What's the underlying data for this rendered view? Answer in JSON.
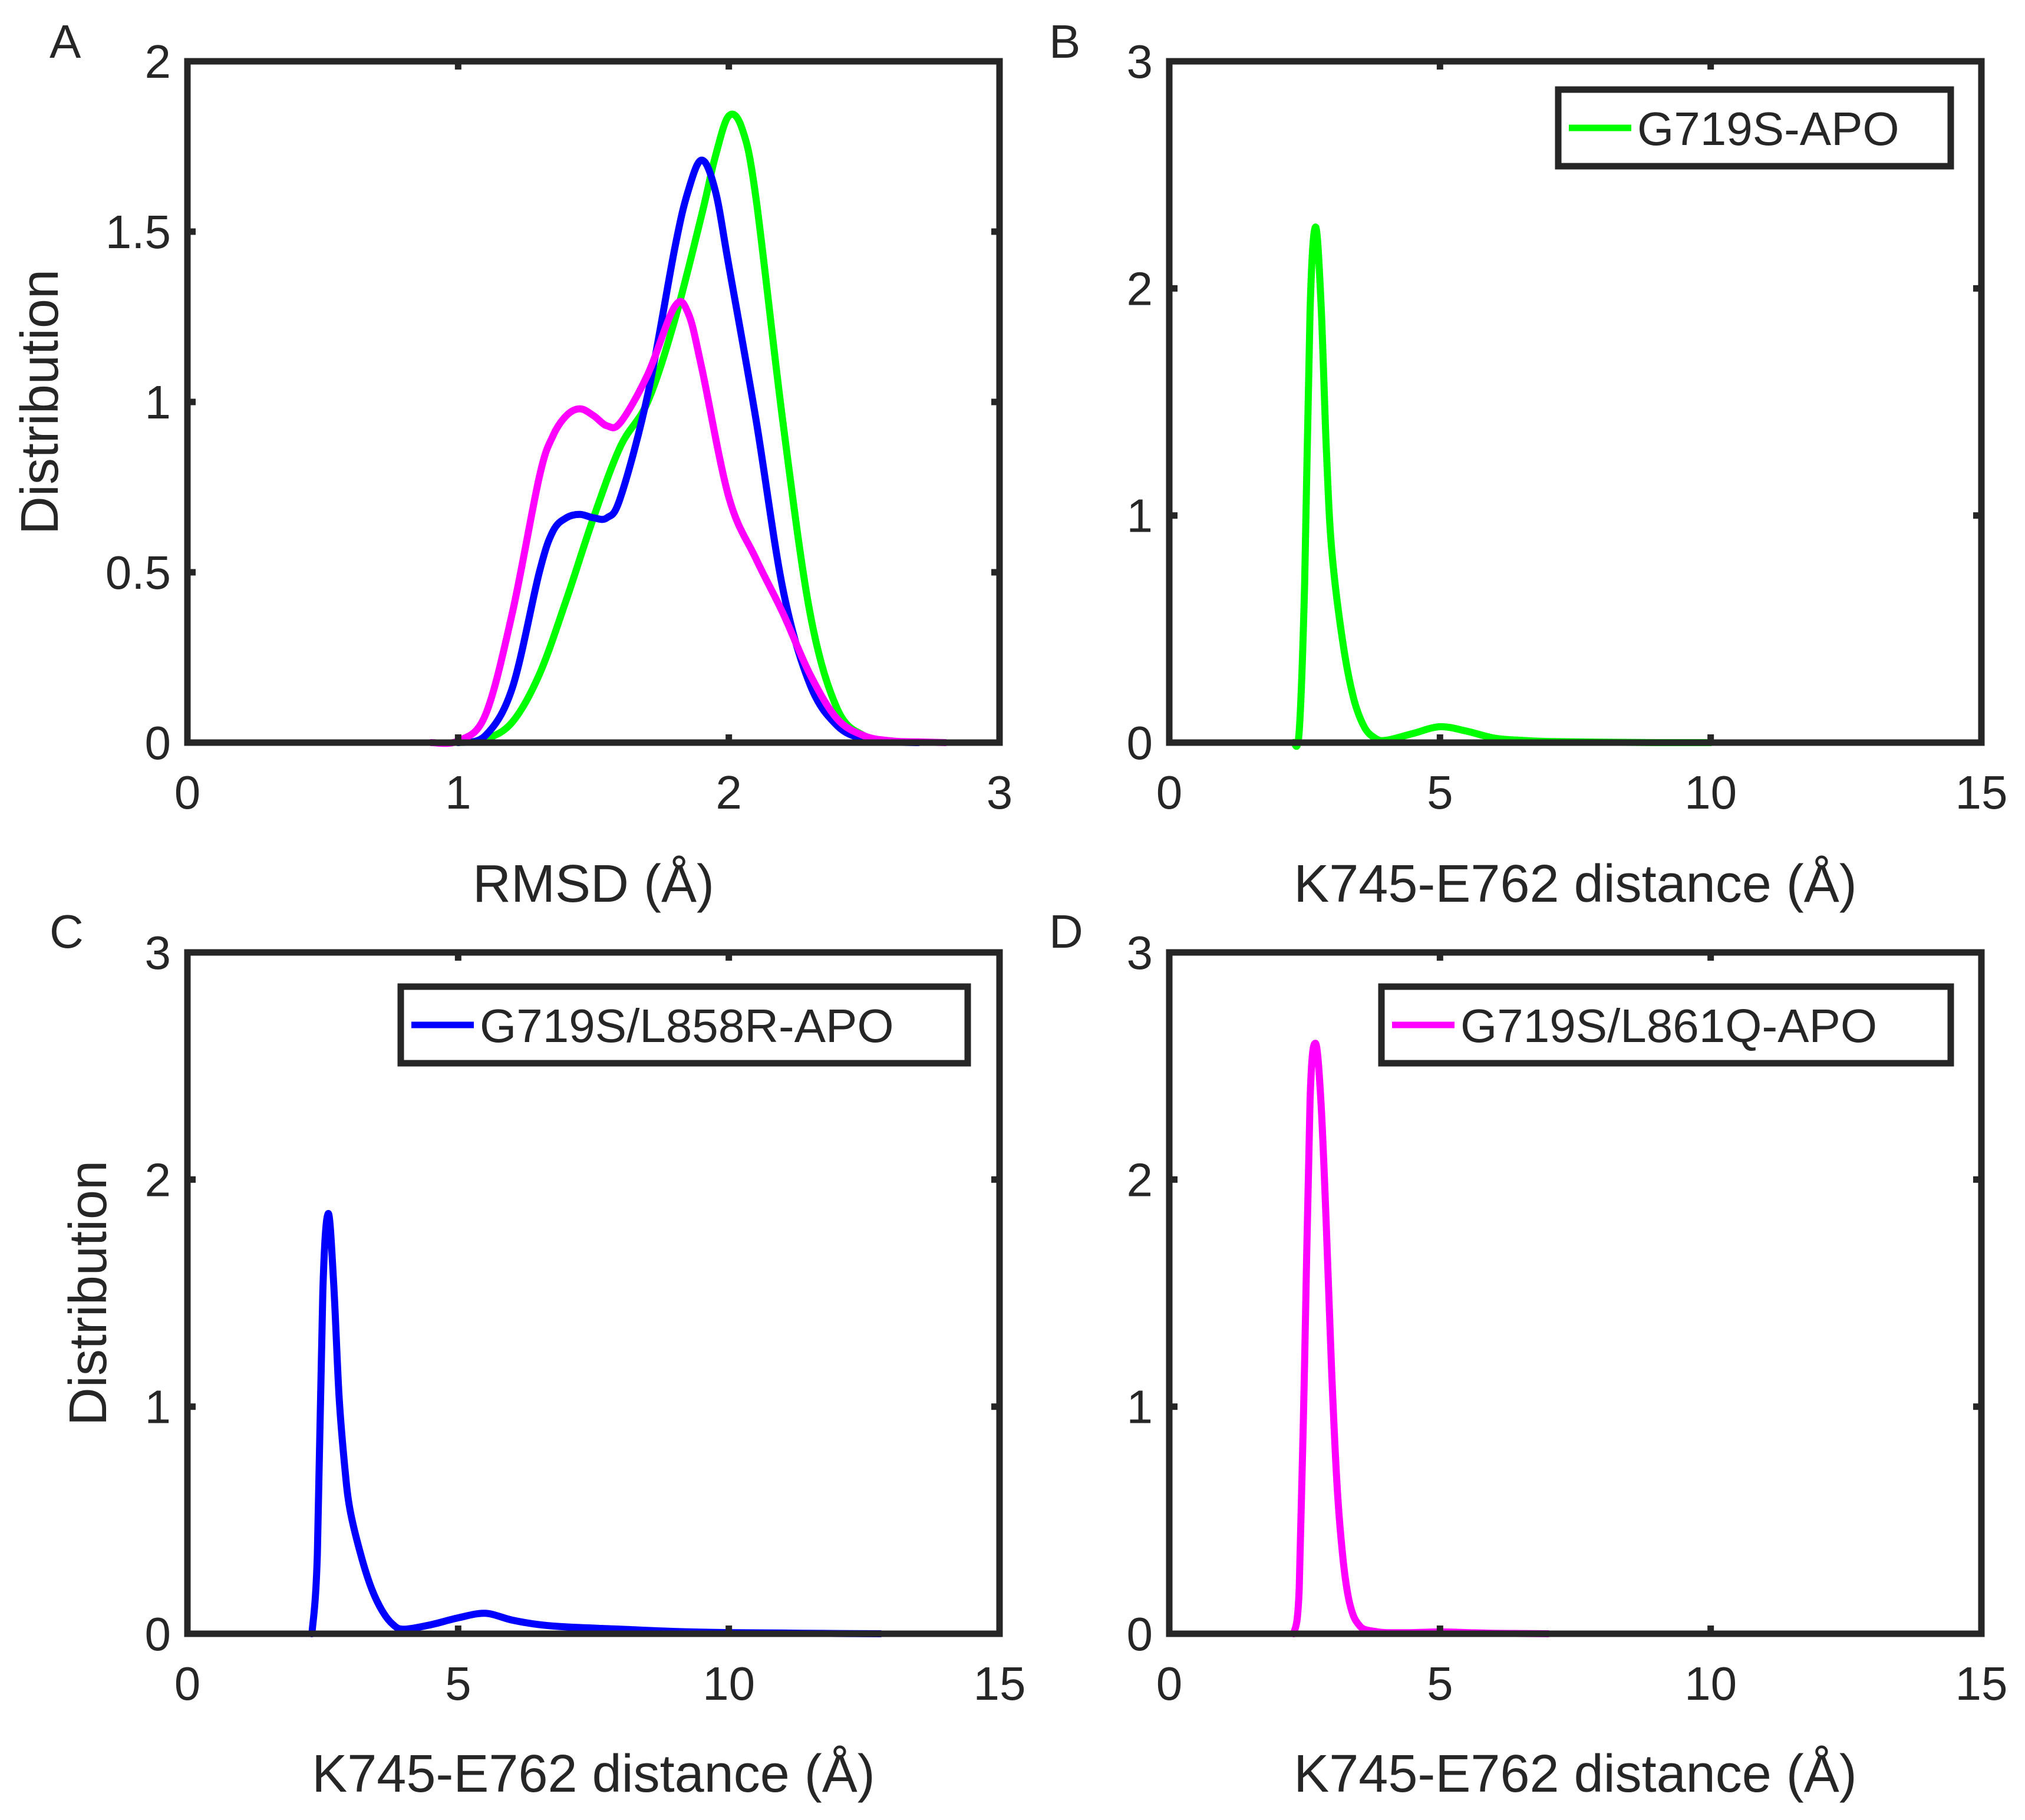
{
  "colors": {
    "frame": "#262626",
    "green": "#00ff00",
    "blue": "#0000ff",
    "magenta": "#ff00ff"
  },
  "chart_data": [
    {
      "panel": "A",
      "type": "line",
      "xlabel": "RMSD (Å)",
      "ylabel": "Distribution",
      "xlim": [
        0,
        3
      ],
      "ylim": [
        0,
        2
      ],
      "xticks": [
        0,
        1,
        2,
        3
      ],
      "xtick_labels": [
        "0",
        "1",
        "2",
        "3"
      ],
      "yticks": [
        0,
        0.5,
        1,
        1.5,
        2
      ],
      "ytick_labels": [
        "0",
        "0.5",
        "1",
        "1.5",
        "2"
      ],
      "legend": null,
      "series": [
        {
          "name": "G719S-APO",
          "color": "#00ff00",
          "x": [
            1.0,
            1.1,
            1.2,
            1.3,
            1.4,
            1.5,
            1.6,
            1.7,
            1.8,
            1.9,
            1.95,
            2.0,
            2.05,
            2.1,
            2.2,
            2.3,
            2.4,
            2.5,
            2.6,
            2.7
          ],
          "y": [
            0,
            0.01,
            0.06,
            0.2,
            0.42,
            0.66,
            0.87,
            1.0,
            1.24,
            1.55,
            1.72,
            1.84,
            1.8,
            1.6,
            0.94,
            0.38,
            0.1,
            0.02,
            0.005,
            0
          ]
        },
        {
          "name": "G719S/L858R-APO",
          "color": "#0000ff",
          "x": [
            1.0,
            1.1,
            1.2,
            1.3,
            1.35,
            1.4,
            1.45,
            1.5,
            1.55,
            1.6,
            1.7,
            1.8,
            1.85,
            1.9,
            1.95,
            2.0,
            2.1,
            2.2,
            2.3,
            2.4,
            2.5,
            2.6,
            2.7
          ],
          "y": [
            0,
            0.02,
            0.16,
            0.5,
            0.62,
            0.66,
            0.67,
            0.66,
            0.66,
            0.72,
            1.02,
            1.45,
            1.62,
            1.71,
            1.62,
            1.4,
            0.95,
            0.45,
            0.17,
            0.05,
            0.01,
            0.002,
            0
          ]
        },
        {
          "name": "G719S/L861Q-APO",
          "color": "#ff00ff",
          "x": [
            0.9,
            1.0,
            1.1,
            1.2,
            1.3,
            1.35,
            1.4,
            1.45,
            1.5,
            1.55,
            1.6,
            1.7,
            1.8,
            1.85,
            1.9,
            2.0,
            2.1,
            2.2,
            2.3,
            2.4,
            2.5,
            2.6,
            2.7,
            2.8
          ],
          "y": [
            0,
            0.005,
            0.08,
            0.38,
            0.78,
            0.9,
            0.96,
            0.98,
            0.96,
            0.93,
            0.94,
            1.08,
            1.28,
            1.26,
            1.1,
            0.72,
            0.54,
            0.38,
            0.2,
            0.07,
            0.02,
            0.005,
            0.002,
            0
          ]
        }
      ]
    },
    {
      "panel": "B",
      "type": "line",
      "xlabel": "K745-E762 distance (Å)",
      "ylabel": "",
      "xlim": [
        0,
        15
      ],
      "ylim": [
        0,
        3
      ],
      "xticks": [
        0,
        5,
        10,
        15
      ],
      "xtick_labels": [
        "0",
        "5",
        "10",
        "15"
      ],
      "yticks": [
        0,
        1,
        2,
        3
      ],
      "ytick_labels": [
        "0",
        "1",
        "2",
        "3"
      ],
      "legend": "top-right",
      "series": [
        {
          "name": "G719S-APO",
          "color": "#00ff00",
          "x": [
            2.3,
            2.4,
            2.5,
            2.6,
            2.7,
            2.8,
            2.9,
            3.0,
            3.2,
            3.4,
            3.6,
            3.8,
            4.0,
            4.5,
            5.0,
            5.5,
            6.0,
            6.5,
            7.0,
            8.0,
            9.0,
            10.0
          ],
          "y": [
            0,
            0.05,
            0.7,
            1.9,
            2.27,
            1.95,
            1.3,
            0.85,
            0.45,
            0.2,
            0.07,
            0.02,
            0.01,
            0.04,
            0.07,
            0.05,
            0.02,
            0.01,
            0.005,
            0.002,
            0,
            0
          ]
        }
      ]
    },
    {
      "panel": "C",
      "type": "line",
      "xlabel": "K745-E762 distance (Å)",
      "ylabel": "Distribution",
      "xlim": [
        0,
        15
      ],
      "ylim": [
        0,
        3
      ],
      "xticks": [
        0,
        5,
        10,
        15
      ],
      "xtick_labels": [
        "0",
        "5",
        "10",
        "15"
      ],
      "yticks": [
        0,
        1,
        2,
        3
      ],
      "ytick_labels": [
        "0",
        "1",
        "2",
        "3"
      ],
      "legend": "top-right",
      "series": [
        {
          "name": "G719S/L858R-APO",
          "color": "#0000ff",
          "x": [
            2.3,
            2.4,
            2.5,
            2.6,
            2.7,
            2.8,
            2.9,
            3.0,
            3.2,
            3.4,
            3.6,
            3.8,
            4.0,
            4.5,
            5.0,
            5.5,
            6.0,
            6.5,
            7.0,
            8.0,
            9.0,
            10.0,
            11.0,
            12.0,
            12.8
          ],
          "y": [
            0,
            0.35,
            1.5,
            1.85,
            1.55,
            1.05,
            0.75,
            0.55,
            0.35,
            0.2,
            0.1,
            0.04,
            0.02,
            0.04,
            0.07,
            0.09,
            0.06,
            0.04,
            0.03,
            0.02,
            0.01,
            0.005,
            0.003,
            0.001,
            0
          ]
        }
      ]
    },
    {
      "panel": "D",
      "type": "line",
      "xlabel": "K745-E762 distance (Å)",
      "ylabel": "",
      "xlim": [
        0,
        15
      ],
      "ylim": [
        0,
        3
      ],
      "xticks": [
        0,
        5,
        10,
        15
      ],
      "xtick_labels": [
        "0",
        "5",
        "10",
        "15"
      ],
      "yticks": [
        0,
        1,
        2,
        3
      ],
      "ytick_labels": [
        "0",
        "1",
        "2",
        "3"
      ],
      "legend": "top-right",
      "series": [
        {
          "name": "G719S/L861Q-APO",
          "color": "#ff00ff",
          "x": [
            2.3,
            2.4,
            2.5,
            2.6,
            2.7,
            2.8,
            2.9,
            3.0,
            3.1,
            3.2,
            3.3,
            3.4,
            3.5,
            3.6,
            3.8,
            4.0,
            4.5,
            5.0,
            5.5,
            6.0,
            6.5,
            7.0
          ],
          "y": [
            0,
            0.2,
            1.2,
            2.35,
            2.6,
            2.35,
            1.8,
            1.15,
            0.65,
            0.35,
            0.17,
            0.08,
            0.04,
            0.02,
            0.01,
            0.005,
            0.005,
            0.008,
            0.005,
            0.002,
            0.001,
            0
          ]
        }
      ]
    }
  ]
}
